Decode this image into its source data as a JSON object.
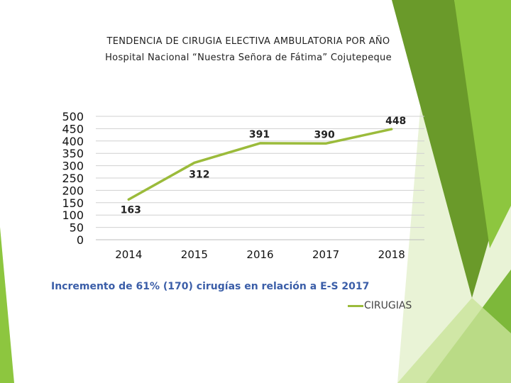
{
  "title_line1": "TENDENCIA DE CIRUGIA ELECTIVA AMBULATORIA POR AÑO",
  "title_line2": "Hospital Nacional “Nuestra Señora de Fátima” Cojutepeque",
  "note": "Incremento de 61% (170) cirugías en relación a E-S 2017",
  "colors": {
    "series_line": "#9bbb3b",
    "note_text": "#3b5ea8",
    "grid": "#d0d0d0",
    "decor_dark": "#6a9a2a",
    "decor_mid": "#8dc63f",
    "decor_light": "#c9e39a"
  },
  "chart_data": {
    "type": "line",
    "categories": [
      "2014",
      "2015",
      "2016",
      "2017",
      "2018"
    ],
    "series": [
      {
        "name": "CIRUGIAS",
        "values": [
          163,
          312,
          391,
          390,
          448
        ]
      }
    ],
    "data_labels": [
      "163",
      "312",
      "391",
      "390",
      "448"
    ],
    "y_ticks": [
      "0",
      "50",
      "100",
      "150",
      "200",
      "250",
      "300",
      "350",
      "400",
      "450",
      "500"
    ],
    "ylim": [
      0,
      500
    ],
    "grid": true,
    "legend": "bottom-right"
  }
}
